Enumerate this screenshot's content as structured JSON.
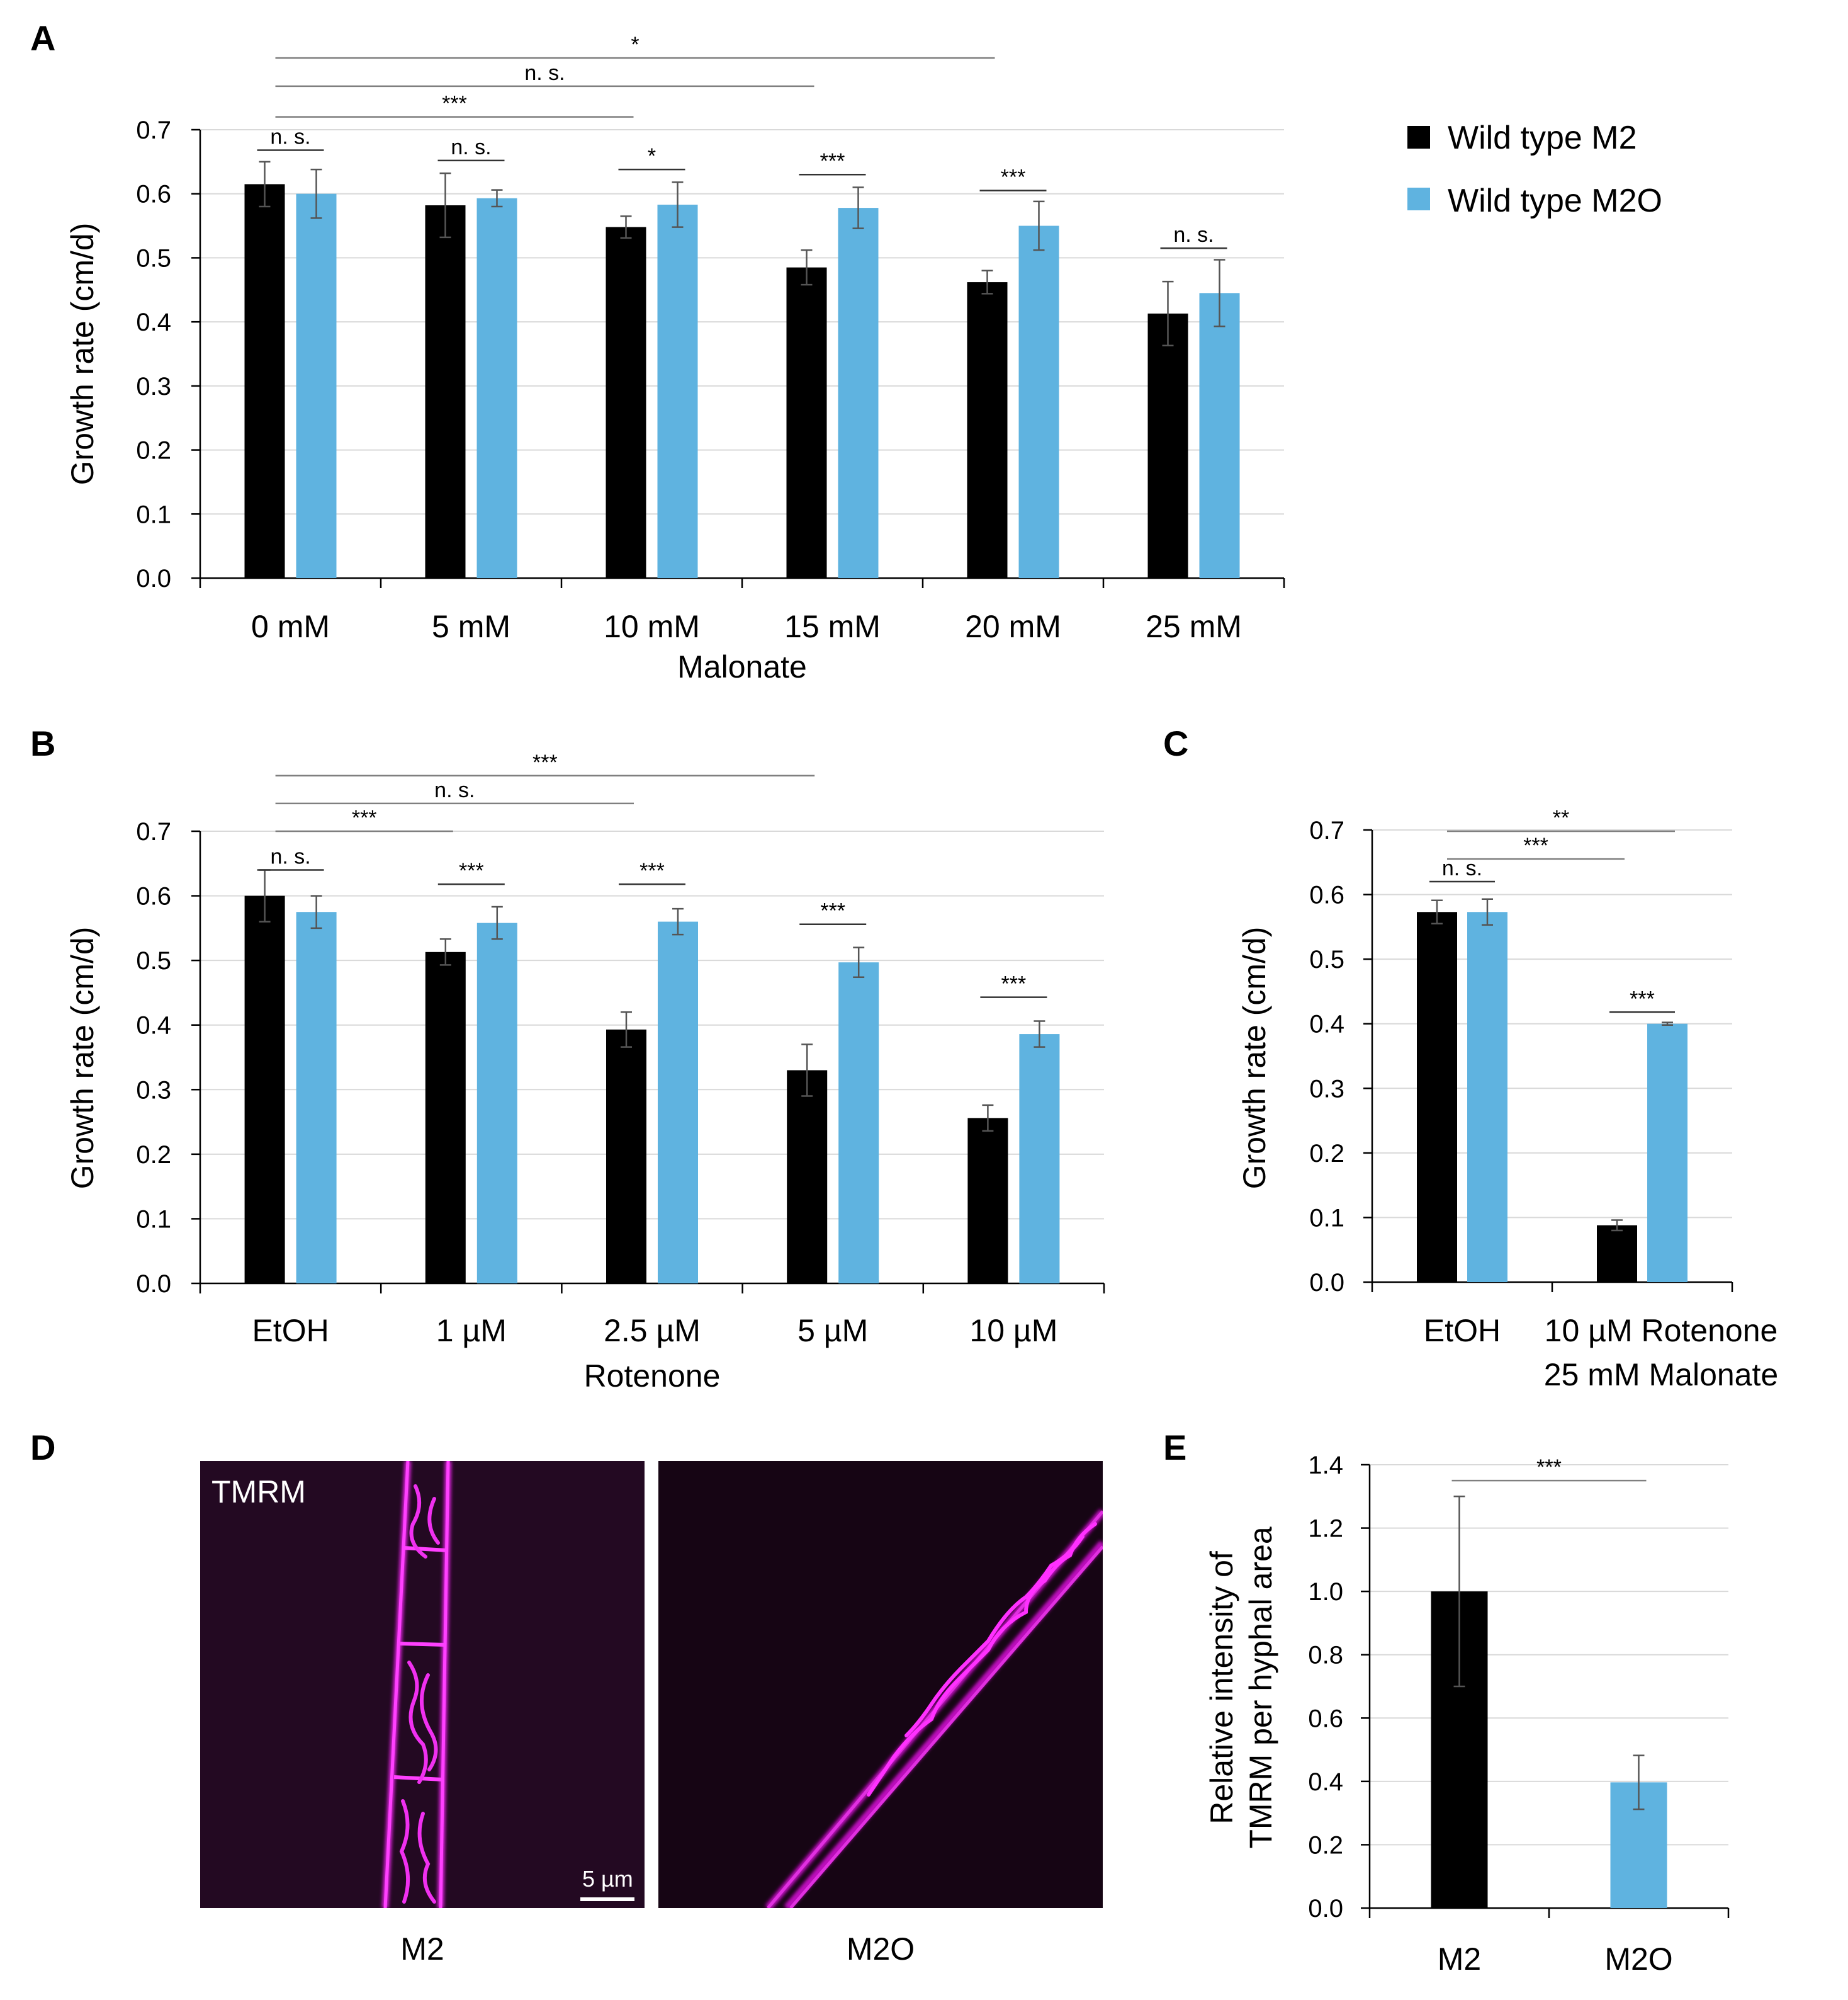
{
  "colors": {
    "wt_m2": "#000000",
    "wt_m2o": "#5fb3e0",
    "grid": "#d9d9d9",
    "bracket": "#7f7f7f"
  },
  "legend": [
    {
      "label": "Wild type M2",
      "color": "#000000"
    },
    {
      "label": "Wild type M2O",
      "color": "#5fb3e0"
    }
  ],
  "chart_data": [
    {
      "panel": "A",
      "type": "bar",
      "ylabel": "Growth rate (cm/d)",
      "xlabel": "Malonate",
      "ylim": [
        0,
        0.7
      ],
      "yticks": [
        "0.0",
        "0.1",
        "0.2",
        "0.3",
        "0.4",
        "0.5",
        "0.6",
        "0.7"
      ],
      "grid": true,
      "categories": [
        "0 mM",
        "5 mM",
        "10 mM",
        "15 mM",
        "20 mM",
        "25 mM"
      ],
      "series": [
        {
          "name": "Wild type M2",
          "values": [
            0.615,
            0.582,
            0.548,
            0.485,
            0.462,
            0.413
          ],
          "errors": [
            0.035,
            0.05,
            0.017,
            0.027,
            0.018,
            0.05
          ]
        },
        {
          "name": "Wild type M2O",
          "values": [
            0.6,
            0.593,
            0.583,
            0.578,
            0.55,
            0.445
          ],
          "errors": [
            0.038,
            0.013,
            0.035,
            0.032,
            0.038,
            0.052
          ]
        }
      ],
      "annotations": [
        {
          "text": "n. s.",
          "from": [
            0,
            0
          ],
          "to": [
            0,
            1
          ],
          "level": 0.668
        },
        {
          "text": "n. s.",
          "from": [
            1,
            0
          ],
          "to": [
            1,
            1
          ],
          "level": 0.652
        },
        {
          "text": "*",
          "from": [
            2,
            0
          ],
          "to": [
            2,
            1
          ],
          "level": 0.638
        },
        {
          "text": "***",
          "from": [
            3,
            0
          ],
          "to": [
            3,
            1
          ],
          "level": 0.63
        },
        {
          "text": "***",
          "from": [
            4,
            0
          ],
          "to": [
            4,
            1
          ],
          "level": 0.605
        },
        {
          "text": "n. s.",
          "from": [
            5,
            0
          ],
          "to": [
            5,
            1
          ],
          "level": 0.515
        },
        {
          "text": "***",
          "from": [
            0,
            0.5
          ],
          "to": [
            2,
            0
          ],
          "level": 0.72
        },
        {
          "text": "n. s.",
          "from": [
            0,
            0.5
          ],
          "to": [
            3,
            0
          ],
          "level": 0.768
        },
        {
          "text": "*",
          "from": [
            0,
            0.5
          ],
          "to": [
            4,
            0
          ],
          "level": 0.812
        }
      ]
    },
    {
      "panel": "B",
      "type": "bar",
      "ylabel": "Growth rate (cm/d)",
      "xlabel": "Rotenone",
      "ylim": [
        0,
        0.7
      ],
      "yticks": [
        "0.0",
        "0.1",
        "0.2",
        "0.3",
        "0.4",
        "0.5",
        "0.6",
        "0.7"
      ],
      "grid": true,
      "categories": [
        "EtOH",
        "1 µM",
        "2.5 µM",
        "5 µM",
        "10 µM"
      ],
      "series": [
        {
          "name": "Wild type M2",
          "values": [
            0.6,
            0.513,
            0.393,
            0.33,
            0.256
          ],
          "errors": [
            0.04,
            0.02,
            0.027,
            0.04,
            0.02
          ]
        },
        {
          "name": "Wild type M2O",
          "values": [
            0.575,
            0.558,
            0.56,
            0.497,
            0.386
          ],
          "errors": [
            0.025,
            0.025,
            0.02,
            0.023,
            0.02
          ]
        }
      ],
      "annotations": [
        {
          "text": "n. s.",
          "from": [
            0,
            0
          ],
          "to": [
            0,
            1
          ],
          "level": 0.64
        },
        {
          "text": "***",
          "from": [
            1,
            0
          ],
          "to": [
            1,
            1
          ],
          "level": 0.618
        },
        {
          "text": "***",
          "from": [
            2,
            0
          ],
          "to": [
            2,
            1
          ],
          "level": 0.618
        },
        {
          "text": "***",
          "from": [
            3,
            0
          ],
          "to": [
            3,
            1
          ],
          "level": 0.556
        },
        {
          "text": "***",
          "from": [
            4,
            0
          ],
          "to": [
            4,
            1
          ],
          "level": 0.443
        },
        {
          "text": "***",
          "from": [
            0,
            0.5
          ],
          "to": [
            1,
            0
          ],
          "level": 0.7
        },
        {
          "text": "n. s.",
          "from": [
            0,
            0.5
          ],
          "to": [
            2,
            0
          ],
          "level": 0.743
        },
        {
          "text": "***",
          "from": [
            0,
            0.5
          ],
          "to": [
            3,
            0
          ],
          "level": 0.786
        }
      ]
    },
    {
      "panel": "C",
      "type": "bar",
      "ylabel": "Growth rate (cm/d)",
      "ylim": [
        0,
        0.7
      ],
      "yticks": [
        "0.0",
        "0.1",
        "0.2",
        "0.3",
        "0.4",
        "0.5",
        "0.6",
        "0.7"
      ],
      "grid": true,
      "categories": [
        "EtOH",
        "10 µM Rotenone\n25 mM Malonate"
      ],
      "series": [
        {
          "name": "Wild type M2",
          "values": [
            0.573,
            0.088
          ],
          "errors": [
            0.018,
            0.008
          ]
        },
        {
          "name": "Wild type M2O",
          "values": [
            0.573,
            0.4
          ],
          "errors": [
            0.02,
            0.002
          ]
        }
      ],
      "annotations": [
        {
          "text": "n. s.",
          "from": [
            0,
            0
          ],
          "to": [
            0,
            1
          ],
          "level": 0.62
        },
        {
          "text": "***",
          "from": [
            1,
            0
          ],
          "to": [
            1,
            1
          ],
          "level": 0.418
        },
        {
          "text": "***",
          "from": [
            0,
            0.5
          ],
          "to": [
            1,
            0
          ],
          "level": 0.655
        },
        {
          "text": "**",
          "from": [
            0,
            0.5
          ],
          "to": [
            1,
            1
          ],
          "level": 0.698
        }
      ]
    },
    {
      "panel": "E",
      "type": "bar",
      "ylabel": "Relative intensity of\nTMRM per hyphal area",
      "ylim": [
        0,
        1.4
      ],
      "yticks": [
        "0.0",
        "0.2",
        "0.4",
        "0.6",
        "0.8",
        "1.0",
        "1.2",
        "1.4"
      ],
      "grid": true,
      "categories": [
        "M2",
        "M2O"
      ],
      "values": [
        1.0,
        0.397
      ],
      "errors": [
        0.3,
        0.085
      ],
      "bar_colors": [
        "#000000",
        "#5fb3e0"
      ],
      "annotations": [
        {
          "text": "***",
          "from": [
            0,
            0
          ],
          "to": [
            1,
            0
          ],
          "level": 1.35
        }
      ]
    }
  ],
  "micrographs": {
    "stain_label": "TMRM",
    "scale_bar": "5 µm",
    "left_caption": "M2",
    "right_caption": "M2O"
  }
}
